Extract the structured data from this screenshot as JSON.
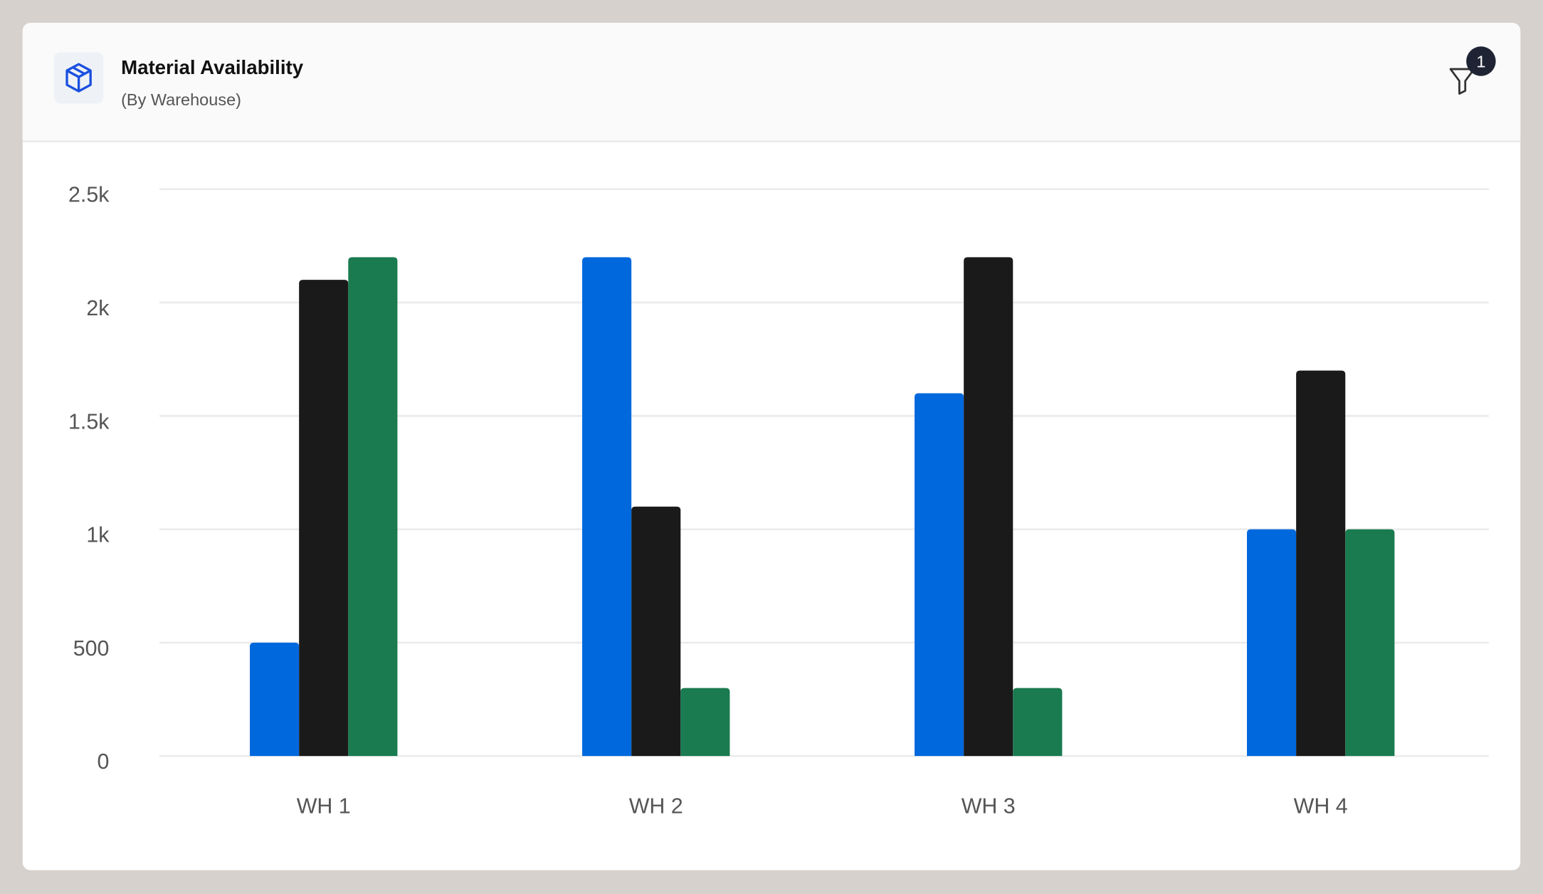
{
  "header": {
    "title": "Material Availability",
    "subtitle": "(By Warehouse)",
    "filter_badge": "1"
  },
  "chart_data": {
    "type": "bar",
    "categories": [
      "WH 1",
      "WH 2",
      "WH 3",
      "WH 4"
    ],
    "series": [
      {
        "color": "#0068dd",
        "values": [
          500,
          2200,
          1600,
          1000
        ]
      },
      {
        "color": "#1a1a1a",
        "values": [
          2100,
          1100,
          2200,
          1700
        ]
      },
      {
        "color": "#1a7a50",
        "values": [
          2200,
          300,
          300,
          1000
        ]
      }
    ],
    "ylim": [
      0,
      2500
    ],
    "yticks": [
      0,
      500,
      {
        "value": 1000,
        "label": "1k"
      },
      {
        "value": 1500,
        "label": "1.5k"
      },
      {
        "value": 2000,
        "label": "2k"
      },
      {
        "value": 2500,
        "label": "2.5k"
      }
    ],
    "grid": true
  }
}
